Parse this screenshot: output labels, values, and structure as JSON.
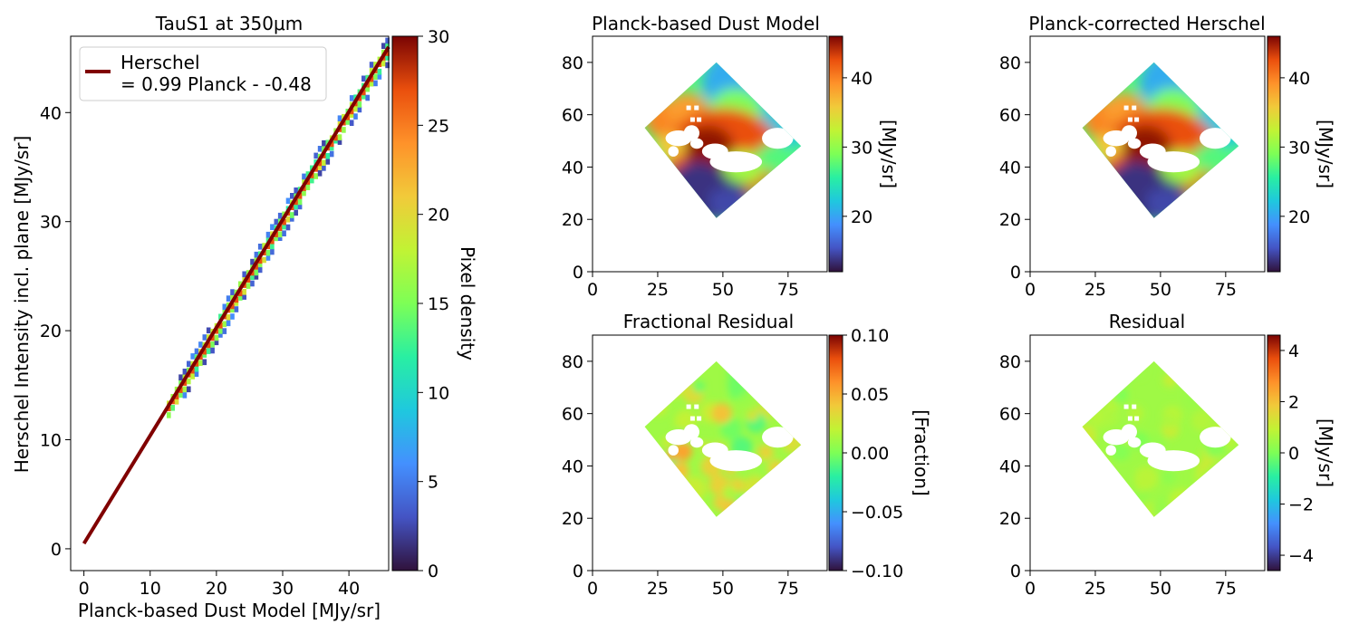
{
  "figure": {
    "panels": [
      {
        "title": "TauS1 at 350μm",
        "xlabel": "Planck-based Dust Model [MJy/sr]",
        "ylabel": "Herschel Intensity incl. plane [MJy/sr]",
        "colorbar_label": "Pixel density",
        "legend": [
          "Herschel",
          "= 0.99 Planck - -0.48"
        ]
      },
      {
        "title": "Planck-based Dust Model",
        "colorbar_label": "[MJy/sr]"
      },
      {
        "title": "Planck-corrected Herschel",
        "colorbar_label": "[MJy/sr]"
      },
      {
        "title": "Fractional Residual",
        "colorbar_label": "[Fraction]"
      },
      {
        "title": "Residual",
        "colorbar_label": "[MJy/sr]"
      }
    ]
  },
  "chart_data": [
    {
      "type": "heatmap",
      "title": "TauS1 at 350μm",
      "xlabel": "Planck-based Dust Model [MJy/sr]",
      "ylabel": "Herschel Intensity incl. plane [MJy/sr]",
      "xlim": [
        -2,
        46
      ],
      "ylim": [
        -2,
        47
      ],
      "xticks": [
        0,
        10,
        20,
        30,
        40
      ],
      "yticks": [
        0,
        10,
        20,
        30,
        40
      ],
      "colorbar": {
        "label": "Pixel density",
        "range": [
          0,
          30
        ],
        "ticks": [
          0,
          5,
          10,
          15,
          20,
          25,
          30
        ],
        "colormap": "turbo"
      },
      "density_along": {
        "x_start": 12.5,
        "x_end": 46,
        "slope": 0.99,
        "intercept": 0.48
      },
      "fit_line": {
        "name": "Herschel",
        "label": "= 0.99 Planck - -0.48",
        "slope": 0.99,
        "intercept": 0.48,
        "x": [
          0,
          46
        ],
        "color": "#800000"
      },
      "legend_position": "top-left"
    },
    {
      "type": "heatmap",
      "title": "Planck-based Dust Model",
      "xlim": [
        0,
        90
      ],
      "ylim": [
        0,
        90
      ],
      "xticks": [
        0,
        25,
        50,
        75
      ],
      "yticks": [
        0,
        20,
        40,
        60,
        80
      ],
      "colorbar": {
        "label": "[MJy/sr]",
        "range": [
          12,
          46
        ],
        "ticks": [
          20,
          30,
          40
        ],
        "colormap": "turbo"
      }
    },
    {
      "type": "heatmap",
      "title": "Planck-corrected Herschel",
      "xlim": [
        0,
        90
      ],
      "ylim": [
        0,
        90
      ],
      "xticks": [
        0,
        25,
        50,
        75
      ],
      "yticks": [
        0,
        20,
        40,
        60,
        80
      ],
      "colorbar": {
        "label": "[MJy/sr]",
        "range": [
          12,
          46
        ],
        "ticks": [
          20,
          30,
          40
        ],
        "colormap": "turbo"
      }
    },
    {
      "type": "heatmap",
      "title": "Fractional Residual",
      "xlim": [
        0,
        90
      ],
      "ylim": [
        0,
        90
      ],
      "xticks": [
        0,
        25,
        50,
        75
      ],
      "yticks": [
        0,
        20,
        40,
        60,
        80
      ],
      "colorbar": {
        "label": "[Fraction]",
        "range": [
          -0.1,
          0.1
        ],
        "ticks": [
          -0.1,
          -0.05,
          0.0,
          0.05,
          0.1
        ],
        "tick_labels": [
          "−0.10",
          "−0.05",
          "0.00",
          "0.05",
          "0.10"
        ],
        "colormap": "turbo"
      }
    },
    {
      "type": "heatmap",
      "title": "Residual",
      "xlim": [
        0,
        90
      ],
      "ylim": [
        0,
        90
      ],
      "xticks": [
        0,
        25,
        50,
        75
      ],
      "yticks": [
        0,
        20,
        40,
        60,
        80
      ],
      "colorbar": {
        "label": "[MJy/sr]",
        "range": [
          -4.6,
          4.6
        ],
        "ticks": [
          -4,
          -2,
          0,
          2,
          4
        ],
        "tick_labels": [
          "−4",
          "−2",
          "0",
          "2",
          "4"
        ],
        "colormap": "turbo"
      }
    }
  ]
}
